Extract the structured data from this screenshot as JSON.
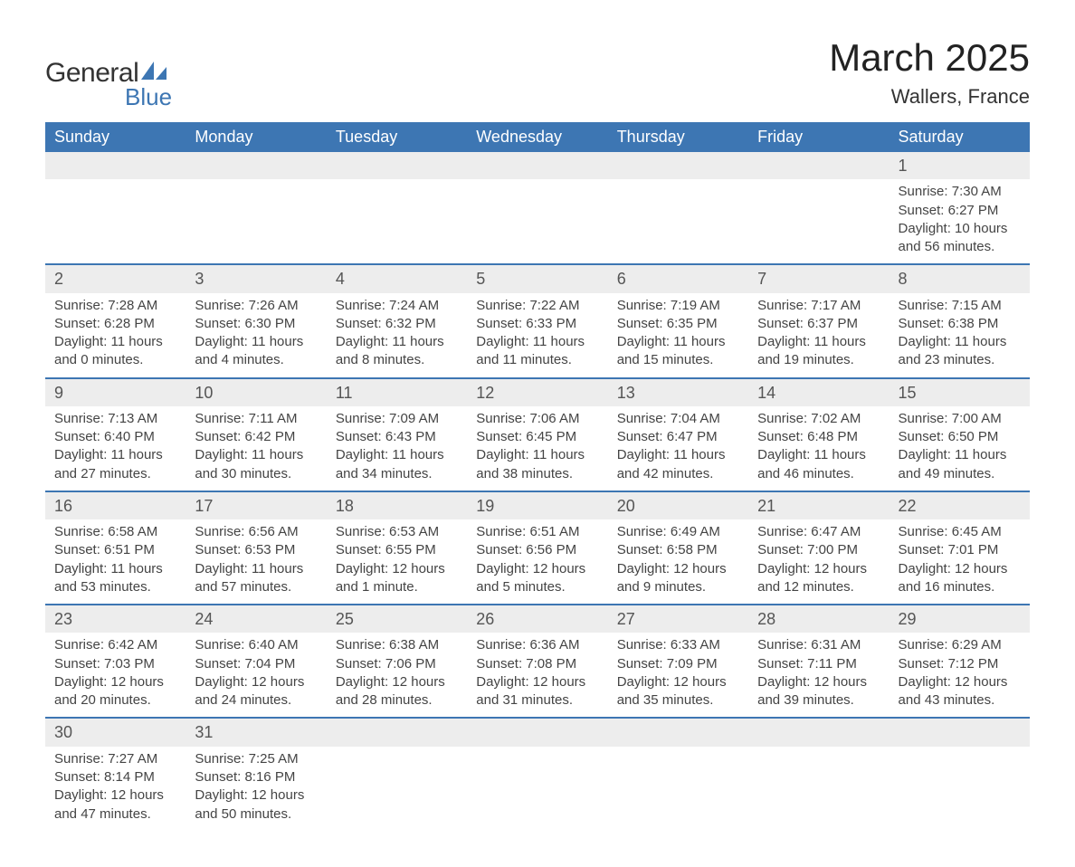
{
  "brand": {
    "general": "General",
    "blue": "Blue",
    "accent_color": "#3d76b3"
  },
  "title": "March 2025",
  "location": "Wallers, France",
  "weekdays": [
    "Sunday",
    "Monday",
    "Tuesday",
    "Wednesday",
    "Thursday",
    "Friday",
    "Saturday"
  ],
  "colors": {
    "header_bg": "#3d76b3",
    "header_text": "#ffffff",
    "daynum_bg": "#ededed",
    "row_divider": "#3d76b3",
    "body_text": "#444444",
    "page_bg": "#ffffff"
  },
  "typography": {
    "title_fontsize": 42,
    "location_fontsize": 22,
    "weekday_fontsize": 18,
    "daynum_fontsize": 18,
    "cell_fontsize": 15
  },
  "weeks": [
    [
      null,
      null,
      null,
      null,
      null,
      null,
      {
        "n": "1",
        "sunrise": "Sunrise: 7:30 AM",
        "sunset": "Sunset: 6:27 PM",
        "day1": "Daylight: 10 hours",
        "day2": "and 56 minutes."
      }
    ],
    [
      {
        "n": "2",
        "sunrise": "Sunrise: 7:28 AM",
        "sunset": "Sunset: 6:28 PM",
        "day1": "Daylight: 11 hours",
        "day2": "and 0 minutes."
      },
      {
        "n": "3",
        "sunrise": "Sunrise: 7:26 AM",
        "sunset": "Sunset: 6:30 PM",
        "day1": "Daylight: 11 hours",
        "day2": "and 4 minutes."
      },
      {
        "n": "4",
        "sunrise": "Sunrise: 7:24 AM",
        "sunset": "Sunset: 6:32 PM",
        "day1": "Daylight: 11 hours",
        "day2": "and 8 minutes."
      },
      {
        "n": "5",
        "sunrise": "Sunrise: 7:22 AM",
        "sunset": "Sunset: 6:33 PM",
        "day1": "Daylight: 11 hours",
        "day2": "and 11 minutes."
      },
      {
        "n": "6",
        "sunrise": "Sunrise: 7:19 AM",
        "sunset": "Sunset: 6:35 PM",
        "day1": "Daylight: 11 hours",
        "day2": "and 15 minutes."
      },
      {
        "n": "7",
        "sunrise": "Sunrise: 7:17 AM",
        "sunset": "Sunset: 6:37 PM",
        "day1": "Daylight: 11 hours",
        "day2": "and 19 minutes."
      },
      {
        "n": "8",
        "sunrise": "Sunrise: 7:15 AM",
        "sunset": "Sunset: 6:38 PM",
        "day1": "Daylight: 11 hours",
        "day2": "and 23 minutes."
      }
    ],
    [
      {
        "n": "9",
        "sunrise": "Sunrise: 7:13 AM",
        "sunset": "Sunset: 6:40 PM",
        "day1": "Daylight: 11 hours",
        "day2": "and 27 minutes."
      },
      {
        "n": "10",
        "sunrise": "Sunrise: 7:11 AM",
        "sunset": "Sunset: 6:42 PM",
        "day1": "Daylight: 11 hours",
        "day2": "and 30 minutes."
      },
      {
        "n": "11",
        "sunrise": "Sunrise: 7:09 AM",
        "sunset": "Sunset: 6:43 PM",
        "day1": "Daylight: 11 hours",
        "day2": "and 34 minutes."
      },
      {
        "n": "12",
        "sunrise": "Sunrise: 7:06 AM",
        "sunset": "Sunset: 6:45 PM",
        "day1": "Daylight: 11 hours",
        "day2": "and 38 minutes."
      },
      {
        "n": "13",
        "sunrise": "Sunrise: 7:04 AM",
        "sunset": "Sunset: 6:47 PM",
        "day1": "Daylight: 11 hours",
        "day2": "and 42 minutes."
      },
      {
        "n": "14",
        "sunrise": "Sunrise: 7:02 AM",
        "sunset": "Sunset: 6:48 PM",
        "day1": "Daylight: 11 hours",
        "day2": "and 46 minutes."
      },
      {
        "n": "15",
        "sunrise": "Sunrise: 7:00 AM",
        "sunset": "Sunset: 6:50 PM",
        "day1": "Daylight: 11 hours",
        "day2": "and 49 minutes."
      }
    ],
    [
      {
        "n": "16",
        "sunrise": "Sunrise: 6:58 AM",
        "sunset": "Sunset: 6:51 PM",
        "day1": "Daylight: 11 hours",
        "day2": "and 53 minutes."
      },
      {
        "n": "17",
        "sunrise": "Sunrise: 6:56 AM",
        "sunset": "Sunset: 6:53 PM",
        "day1": "Daylight: 11 hours",
        "day2": "and 57 minutes."
      },
      {
        "n": "18",
        "sunrise": "Sunrise: 6:53 AM",
        "sunset": "Sunset: 6:55 PM",
        "day1": "Daylight: 12 hours",
        "day2": "and 1 minute."
      },
      {
        "n": "19",
        "sunrise": "Sunrise: 6:51 AM",
        "sunset": "Sunset: 6:56 PM",
        "day1": "Daylight: 12 hours",
        "day2": "and 5 minutes."
      },
      {
        "n": "20",
        "sunrise": "Sunrise: 6:49 AM",
        "sunset": "Sunset: 6:58 PM",
        "day1": "Daylight: 12 hours",
        "day2": "and 9 minutes."
      },
      {
        "n": "21",
        "sunrise": "Sunrise: 6:47 AM",
        "sunset": "Sunset: 7:00 PM",
        "day1": "Daylight: 12 hours",
        "day2": "and 12 minutes."
      },
      {
        "n": "22",
        "sunrise": "Sunrise: 6:45 AM",
        "sunset": "Sunset: 7:01 PM",
        "day1": "Daylight: 12 hours",
        "day2": "and 16 minutes."
      }
    ],
    [
      {
        "n": "23",
        "sunrise": "Sunrise: 6:42 AM",
        "sunset": "Sunset: 7:03 PM",
        "day1": "Daylight: 12 hours",
        "day2": "and 20 minutes."
      },
      {
        "n": "24",
        "sunrise": "Sunrise: 6:40 AM",
        "sunset": "Sunset: 7:04 PM",
        "day1": "Daylight: 12 hours",
        "day2": "and 24 minutes."
      },
      {
        "n": "25",
        "sunrise": "Sunrise: 6:38 AM",
        "sunset": "Sunset: 7:06 PM",
        "day1": "Daylight: 12 hours",
        "day2": "and 28 minutes."
      },
      {
        "n": "26",
        "sunrise": "Sunrise: 6:36 AM",
        "sunset": "Sunset: 7:08 PM",
        "day1": "Daylight: 12 hours",
        "day2": "and 31 minutes."
      },
      {
        "n": "27",
        "sunrise": "Sunrise: 6:33 AM",
        "sunset": "Sunset: 7:09 PM",
        "day1": "Daylight: 12 hours",
        "day2": "and 35 minutes."
      },
      {
        "n": "28",
        "sunrise": "Sunrise: 6:31 AM",
        "sunset": "Sunset: 7:11 PM",
        "day1": "Daylight: 12 hours",
        "day2": "and 39 minutes."
      },
      {
        "n": "29",
        "sunrise": "Sunrise: 6:29 AM",
        "sunset": "Sunset: 7:12 PM",
        "day1": "Daylight: 12 hours",
        "day2": "and 43 minutes."
      }
    ],
    [
      {
        "n": "30",
        "sunrise": "Sunrise: 7:27 AM",
        "sunset": "Sunset: 8:14 PM",
        "day1": "Daylight: 12 hours",
        "day2": "and 47 minutes."
      },
      {
        "n": "31",
        "sunrise": "Sunrise: 7:25 AM",
        "sunset": "Sunset: 8:16 PM",
        "day1": "Daylight: 12 hours",
        "day2": "and 50 minutes."
      },
      null,
      null,
      null,
      null,
      null
    ]
  ]
}
